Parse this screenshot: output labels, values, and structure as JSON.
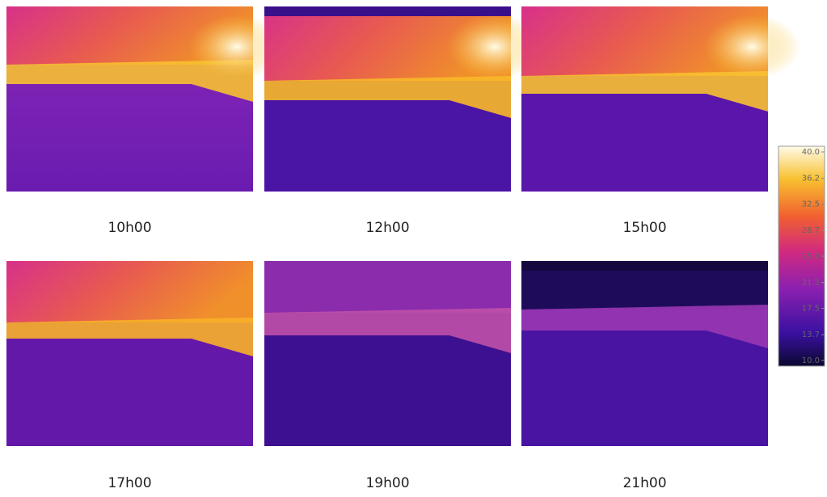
{
  "panels": [
    {
      "caption": "10h00"
    },
    {
      "caption": "12h00"
    },
    {
      "caption": "15h00"
    },
    {
      "caption": "17h00"
    },
    {
      "caption": "19h00"
    },
    {
      "caption": "21h00"
    }
  ],
  "colorbar": {
    "min": 10,
    "max": 40,
    "ticks": [
      {
        "value": 40,
        "label": "40.0"
      },
      {
        "value": 36.2,
        "label": "36.2"
      },
      {
        "value": 32.5,
        "label": "32.5"
      },
      {
        "value": 28.7,
        "label": "28.7"
      },
      {
        "value": 25,
        "label": "25.0"
      },
      {
        "value": 21.2,
        "label": "21.2"
      },
      {
        "value": 17.5,
        "label": "17.5"
      },
      {
        "value": 13.7,
        "label": "13.7"
      },
      {
        "value": 10,
        "label": "10.0"
      }
    ]
  }
}
